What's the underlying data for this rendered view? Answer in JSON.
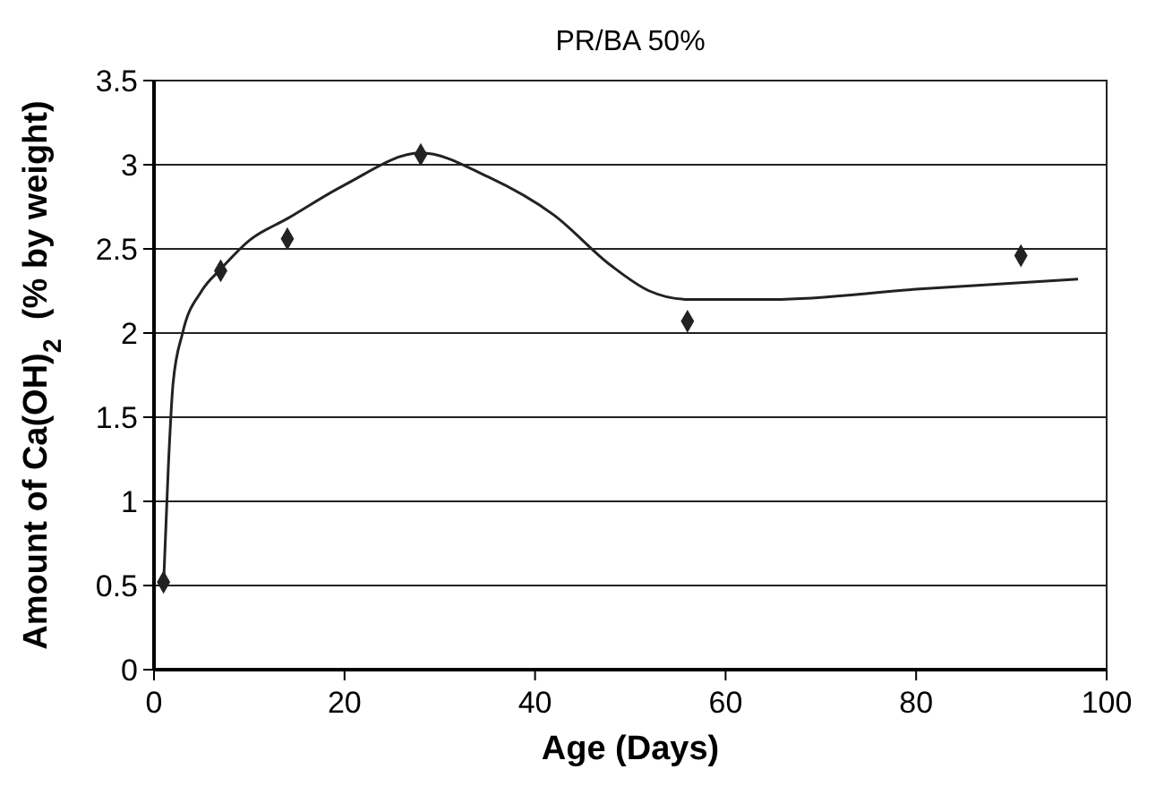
{
  "chart_data": {
    "type": "scatter",
    "title": "PR/BA 50%",
    "xlabel": "Age (Days)",
    "ylabel": "Amount of Ca(OH)$_{2}$  (% by weight)",
    "xlim": [
      0,
      100
    ],
    "xticks": [
      0,
      20,
      40,
      60,
      80,
      100
    ],
    "ylim": [
      0,
      3.5
    ],
    "yticks": [
      0,
      0.5,
      1,
      1.5,
      2,
      2.5,
      3,
      3.5
    ],
    "grid": "y",
    "marker": "diamond",
    "series": [
      {
        "type": "scatter",
        "color": "#222222",
        "x": [
          1,
          7,
          14,
          28,
          56,
          91
        ],
        "values": [
          0.52,
          2.37,
          2.56,
          3.06,
          2.07,
          2.46
        ]
      },
      {
        "type": "line",
        "color": "#222222",
        "line_style": "solid",
        "marker": "none",
        "x": [
          1,
          1.5,
          2,
          3,
          5,
          7,
          10,
          14,
          20,
          28,
          35,
          42,
          48,
          52,
          56,
          65,
          80,
          97
        ],
        "values": [
          0.5,
          1.2,
          1.7,
          2.0,
          2.25,
          2.38,
          2.55,
          2.68,
          2.88,
          3.07,
          2.93,
          2.7,
          2.4,
          2.25,
          2.2,
          2.2,
          2.26,
          2.32
        ]
      }
    ]
  }
}
